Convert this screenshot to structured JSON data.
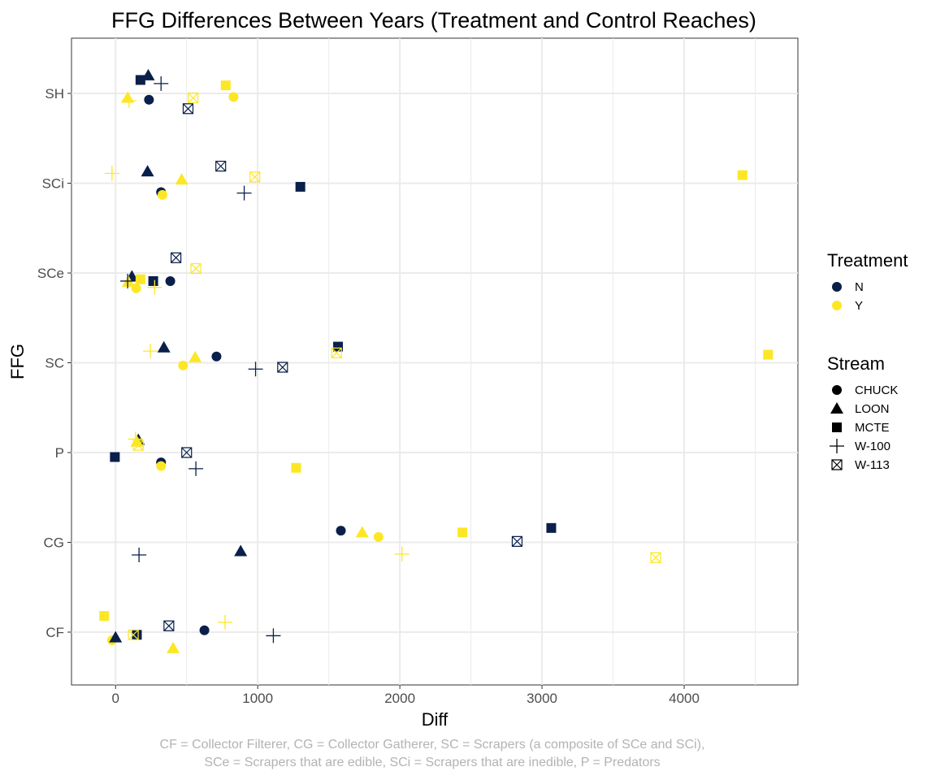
{
  "chart_data": {
    "type": "scatter",
    "title": "FFG Differences Between Years (Treatment and Control Reaches)",
    "xlabel": "Diff",
    "ylabel": "FFG",
    "xlim": [
      -310,
      4800
    ],
    "x_ticks": [
      0,
      1000,
      2000,
      3000,
      4000
    ],
    "categories": [
      "CF",
      "CG",
      "P",
      "SC",
      "SCe",
      "SCi",
      "SH"
    ],
    "grid": true,
    "legend_position": "right",
    "colors": {
      "N": "#0a1f4a",
      "Y": "#fde725"
    },
    "legends": [
      {
        "title": "Treatment",
        "entries": [
          {
            "label": "N",
            "color": "#0a1f4a"
          },
          {
            "label": "Y",
            "color": "#fde725"
          }
        ]
      },
      {
        "title": "Stream",
        "entries": [
          {
            "label": "CHUCK",
            "shape": "circle"
          },
          {
            "label": "LOON",
            "shape": "triangle"
          },
          {
            "label": "MCTE",
            "shape": "square"
          },
          {
            "label": "W-100",
            "shape": "plus"
          },
          {
            "label": "W-113",
            "shape": "boxx"
          }
        ]
      }
    ],
    "points": [
      {
        "ffg": "SH",
        "stream": "CHUCK",
        "treatment": "N",
        "x": 235,
        "jitter": -0.07
      },
      {
        "ffg": "SH",
        "stream": "CHUCK",
        "treatment": "Y",
        "x": 830,
        "jitter": -0.04
      },
      {
        "ffg": "SH",
        "stream": "LOON",
        "treatment": "N",
        "x": 230,
        "jitter": 0.2
      },
      {
        "ffg": "SH",
        "stream": "LOON",
        "treatment": "Y",
        "x": 85,
        "jitter": -0.05
      },
      {
        "ffg": "SH",
        "stream": "MCTE",
        "treatment": "N",
        "x": 175,
        "jitter": 0.15
      },
      {
        "ffg": "SH",
        "stream": "MCTE",
        "treatment": "Y",
        "x": 775,
        "jitter": 0.09
      },
      {
        "ffg": "SH",
        "stream": "W-100",
        "treatment": "N",
        "x": 320,
        "jitter": 0.11
      },
      {
        "ffg": "SH",
        "stream": "W-100",
        "treatment": "Y",
        "x": 95,
        "jitter": -0.08
      },
      {
        "ffg": "SH",
        "stream": "W-113",
        "treatment": "N",
        "x": 510,
        "jitter": -0.17
      },
      {
        "ffg": "SH",
        "stream": "W-113",
        "treatment": "Y",
        "x": 545,
        "jitter": -0.05
      },
      {
        "ffg": "SCi",
        "stream": "CHUCK",
        "treatment": "N",
        "x": 320,
        "jitter": -0.1
      },
      {
        "ffg": "SCi",
        "stream": "CHUCK",
        "treatment": "Y",
        "x": 330,
        "jitter": -0.13
      },
      {
        "ffg": "SCi",
        "stream": "LOON",
        "treatment": "N",
        "x": 225,
        "jitter": 0.13
      },
      {
        "ffg": "SCi",
        "stream": "LOON",
        "treatment": "Y",
        "x": 465,
        "jitter": 0.04
      },
      {
        "ffg": "SCi",
        "stream": "MCTE",
        "treatment": "N",
        "x": 1300,
        "jitter": -0.04
      },
      {
        "ffg": "SCi",
        "stream": "MCTE",
        "treatment": "Y",
        "x": 4410,
        "jitter": 0.09
      },
      {
        "ffg": "SCi",
        "stream": "W-100",
        "treatment": "N",
        "x": 905,
        "jitter": -0.11
      },
      {
        "ffg": "SCi",
        "stream": "W-100",
        "treatment": "Y",
        "x": -25,
        "jitter": 0.11
      },
      {
        "ffg": "SCi",
        "stream": "W-113",
        "treatment": "N",
        "x": 740,
        "jitter": 0.19
      },
      {
        "ffg": "SCi",
        "stream": "W-113",
        "treatment": "Y",
        "x": 980,
        "jitter": 0.07
      },
      {
        "ffg": "SCe",
        "stream": "CHUCK",
        "treatment": "N",
        "x": 385,
        "jitter": -0.09
      },
      {
        "ffg": "SCe",
        "stream": "CHUCK",
        "treatment": "Y",
        "x": 145,
        "jitter": -0.17
      },
      {
        "ffg": "SCe",
        "stream": "LOON",
        "treatment": "N",
        "x": 115,
        "jitter": -0.04
      },
      {
        "ffg": "SCe",
        "stream": "LOON",
        "treatment": "Y",
        "x": 90,
        "jitter": -0.1
      },
      {
        "ffg": "SCe",
        "stream": "MCTE",
        "treatment": "N",
        "x": 265,
        "jitter": -0.09
      },
      {
        "ffg": "SCe",
        "stream": "MCTE",
        "treatment": "Y",
        "x": 175,
        "jitter": -0.07
      },
      {
        "ffg": "SCe",
        "stream": "W-100",
        "treatment": "N",
        "x": 85,
        "jitter": -0.09
      },
      {
        "ffg": "SCe",
        "stream": "W-100",
        "treatment": "Y",
        "x": 275,
        "jitter": -0.16
      },
      {
        "ffg": "SCe",
        "stream": "W-113",
        "treatment": "N",
        "x": 425,
        "jitter": 0.17
      },
      {
        "ffg": "SCe",
        "stream": "W-113",
        "treatment": "Y",
        "x": 565,
        "jitter": 0.05
      },
      {
        "ffg": "SC",
        "stream": "CHUCK",
        "treatment": "N",
        "x": 710,
        "jitter": 0.07
      },
      {
        "ffg": "SC",
        "stream": "CHUCK",
        "treatment": "Y",
        "x": 475,
        "jitter": -0.03
      },
      {
        "ffg": "SC",
        "stream": "LOON",
        "treatment": "N",
        "x": 340,
        "jitter": 0.17
      },
      {
        "ffg": "SC",
        "stream": "LOON",
        "treatment": "Y",
        "x": 560,
        "jitter": 0.06
      },
      {
        "ffg": "SC",
        "stream": "MCTE",
        "treatment": "N",
        "x": 1565,
        "jitter": 0.18
      },
      {
        "ffg": "SC",
        "stream": "MCTE",
        "treatment": "Y",
        "x": 4590,
        "jitter": 0.09
      },
      {
        "ffg": "SC",
        "stream": "W-100",
        "treatment": "N",
        "x": 985,
        "jitter": -0.07
      },
      {
        "ffg": "SC",
        "stream": "W-100",
        "treatment": "Y",
        "x": 245,
        "jitter": 0.13
      },
      {
        "ffg": "SC",
        "stream": "W-113",
        "treatment": "N",
        "x": 1175,
        "jitter": -0.05
      },
      {
        "ffg": "SC",
        "stream": "W-113",
        "treatment": "Y",
        "x": 1555,
        "jitter": 0.11
      },
      {
        "ffg": "P",
        "stream": "CHUCK",
        "treatment": "N",
        "x": 320,
        "jitter": -0.11
      },
      {
        "ffg": "P",
        "stream": "CHUCK",
        "treatment": "Y",
        "x": 320,
        "jitter": -0.15
      },
      {
        "ffg": "P",
        "stream": "LOON",
        "treatment": "N",
        "x": 160,
        "jitter": 0.14
      },
      {
        "ffg": "P",
        "stream": "LOON",
        "treatment": "Y",
        "x": 150,
        "jitter": 0.12
      },
      {
        "ffg": "P",
        "stream": "MCTE",
        "treatment": "N",
        "x": -5,
        "jitter": -0.05
      },
      {
        "ffg": "P",
        "stream": "MCTE",
        "treatment": "Y",
        "x": 1270,
        "jitter": -0.17
      },
      {
        "ffg": "P",
        "stream": "W-100",
        "treatment": "N",
        "x": 565,
        "jitter": -0.18
      },
      {
        "ffg": "P",
        "stream": "W-100",
        "treatment": "Y",
        "x": 140,
        "jitter": 0.15
      },
      {
        "ffg": "P",
        "stream": "W-113",
        "treatment": "N",
        "x": 500,
        "jitter": 0.0
      },
      {
        "ffg": "P",
        "stream": "W-113",
        "treatment": "Y",
        "x": 160,
        "jitter": 0.08
      },
      {
        "ffg": "CG",
        "stream": "CHUCK",
        "treatment": "N",
        "x": 1585,
        "jitter": 0.13
      },
      {
        "ffg": "CG",
        "stream": "CHUCK",
        "treatment": "Y",
        "x": 1850,
        "jitter": 0.06
      },
      {
        "ffg": "CG",
        "stream": "LOON",
        "treatment": "N",
        "x": 880,
        "jitter": -0.1
      },
      {
        "ffg": "CG",
        "stream": "LOON",
        "treatment": "Y",
        "x": 1735,
        "jitter": 0.11
      },
      {
        "ffg": "CG",
        "stream": "MCTE",
        "treatment": "N",
        "x": 3065,
        "jitter": 0.16
      },
      {
        "ffg": "CG",
        "stream": "MCTE",
        "treatment": "Y",
        "x": 2440,
        "jitter": 0.11
      },
      {
        "ffg": "CG",
        "stream": "W-100",
        "treatment": "N",
        "x": 165,
        "jitter": -0.14
      },
      {
        "ffg": "CG",
        "stream": "W-100",
        "treatment": "Y",
        "x": 2015,
        "jitter": -0.13
      },
      {
        "ffg": "CG",
        "stream": "W-113",
        "treatment": "N",
        "x": 2825,
        "jitter": 0.01
      },
      {
        "ffg": "CG",
        "stream": "W-113",
        "treatment": "Y",
        "x": 3800,
        "jitter": -0.17
      },
      {
        "ffg": "CF",
        "stream": "CHUCK",
        "treatment": "N",
        "x": 625,
        "jitter": 0.02
      },
      {
        "ffg": "CF",
        "stream": "CHUCK",
        "treatment": "Y",
        "x": -25,
        "jitter": -0.09
      },
      {
        "ffg": "CF",
        "stream": "LOON",
        "treatment": "N",
        "x": 0,
        "jitter": -0.06
      },
      {
        "ffg": "CF",
        "stream": "LOON",
        "treatment": "Y",
        "x": 405,
        "jitter": -0.18
      },
      {
        "ffg": "CF",
        "stream": "MCTE",
        "treatment": "N",
        "x": 150,
        "jitter": -0.03
      },
      {
        "ffg": "CF",
        "stream": "MCTE",
        "treatment": "Y",
        "x": -80,
        "jitter": 0.18
      },
      {
        "ffg": "CF",
        "stream": "W-100",
        "treatment": "N",
        "x": 1110,
        "jitter": -0.04
      },
      {
        "ffg": "CF",
        "stream": "W-100",
        "treatment": "Y",
        "x": 770,
        "jitter": 0.11
      },
      {
        "ffg": "CF",
        "stream": "W-113",
        "treatment": "N",
        "x": 375,
        "jitter": 0.07
      },
      {
        "ffg": "CF",
        "stream": "W-113",
        "treatment": "Y",
        "x": 125,
        "jitter": -0.03
      }
    ],
    "caption_lines": [
      "CF = Collector Filterer, CG = Collector Gatherer,  SC = Scrapers (a composite of SCe and SCi),",
      "SCe = Scrapers that are edible, SCi = Scrapers that are inedible, P = Predators"
    ]
  }
}
